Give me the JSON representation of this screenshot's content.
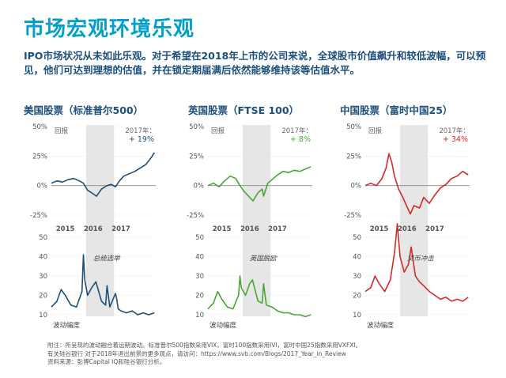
{
  "title": "市场宏观环境乐观",
  "intro": "IPO市场状况从未如此乐观。对于希望在2018年上市的公司来说，全球股市价值飙升和较低波幅，可以预见，他们可达到理想的估值，并在锁定期届满后依然能够维持该等估值水平。",
  "footnote": {
    "line1": "附注：所呈现的波动融合着远期波动。标准普尔500指数采用VIX，富时100指数采用IVI，富时中国25指数采用VXFXI。",
    "line2": "有关硅谷银行 对于2018年退出前景的更多观点，请访问：https://www.svb.com/Blogs/2017_Year_in_Review",
    "line3": "资料来源：彭博Capital IQ和硅谷银行分析。"
  },
  "colors": {
    "title": "#00a0c8",
    "panel_title": "#1c4f7c",
    "highlight": "#e6e6e6",
    "axis": "#555555"
  },
  "chart_data": [
    {
      "type": "line",
      "title": "美国股票（标准普尔500）",
      "color": "#1e4f78",
      "top": {
        "label": "回报",
        "ytick_labels": [
          "50%",
          "25%",
          "0%",
          "-25%"
        ],
        "ylim": [
          -25,
          50
        ],
        "xtick_labels": [
          "2015",
          "2016",
          "2017"
        ],
        "annotation_label": "2017年：",
        "annotation_value": "+ 19%",
        "series": [
          {
            "x": [
              2014.5,
              2014.7,
              2014.9,
              2015.1,
              2015.3,
              2015.5,
              2015.65,
              2015.8,
              2016.0,
              2016.12,
              2016.3,
              2016.5,
              2016.65,
              2016.8,
              2016.95,
              2017.1,
              2017.3,
              2017.5,
              2017.7,
              2017.9,
              2018.1,
              2018.2
            ],
            "y": [
              2,
              4,
              3,
              5,
              6,
              4,
              2,
              -4,
              -7,
              -9,
              -3,
              0,
              1,
              -1,
              4,
              8,
              10,
              12,
              15,
              18,
              24,
              28
            ]
          }
        ]
      },
      "bottom": {
        "label": "波动幅度",
        "ytick_labels": [
          "50",
          "40",
          "30",
          "20",
          "10"
        ],
        "ylim": [
          10,
          50
        ],
        "annotation": "总统选举",
        "series": [
          {
            "x": [
              2014.5,
              2014.7,
              2014.85,
              2015.0,
              2015.2,
              2015.4,
              2015.6,
              2015.65,
              2015.7,
              2015.8,
              2015.95,
              2016.1,
              2016.3,
              2016.45,
              2016.5,
              2016.6,
              2016.8,
              2016.85,
              2016.9,
              2017.0,
              2017.2,
              2017.4,
              2017.6,
              2017.8,
              2018.0,
              2018.2
            ],
            "y": [
              14,
              17,
              23,
              20,
              15,
              14,
              22,
              41,
              28,
              20,
              24,
              27,
              17,
              15,
              25,
              14,
              21,
              18,
              13,
              12,
              11,
              12,
              10,
              11,
              10,
              11
            ]
          }
        ]
      }
    },
    {
      "type": "line",
      "title": "英国股票（FTSE 100）",
      "color": "#4aa537",
      "top": {
        "label": "回报",
        "ytick_labels": [
          "50%",
          "25%",
          "0%",
          "-25%"
        ],
        "ylim": [
          -25,
          50
        ],
        "xtick_labels": [
          "2015",
          "2016",
          "2017"
        ],
        "annotation_label": "2017年：",
        "annotation_value": "+ 8%",
        "series": [
          {
            "x": [
              2014.5,
              2014.7,
              2014.9,
              2015.1,
              2015.3,
              2015.5,
              2015.65,
              2015.8,
              2016.0,
              2016.12,
              2016.3,
              2016.45,
              2016.5,
              2016.65,
              2016.8,
              2017.0,
              2017.2,
              2017.4,
              2017.6,
              2017.8,
              2018.0,
              2018.2
            ],
            "y": [
              0,
              2,
              -1,
              4,
              8,
              6,
              0,
              -5,
              -10,
              -13,
              -6,
              -3,
              -9,
              2,
              5,
              9,
              12,
              11,
              13,
              12,
              14,
              16
            ]
          }
        ]
      },
      "bottom": {
        "label": "波动幅度",
        "ytick_labels": [
          "50",
          "40",
          "30",
          "20",
          "10"
        ],
        "ylim": [
          10,
          50
        ],
        "annotation": "英国脱欧",
        "series": [
          {
            "x": [
              2014.5,
              2014.7,
              2014.85,
              2015.0,
              2015.2,
              2015.4,
              2015.6,
              2015.65,
              2015.7,
              2015.85,
              2016.0,
              2016.1,
              2016.3,
              2016.45,
              2016.5,
              2016.6,
              2016.8,
              2017.0,
              2017.2,
              2017.4,
              2017.6,
              2017.8,
              2018.0,
              2018.2
            ],
            "y": [
              13,
              16,
              22,
              18,
              14,
              13,
              20,
              30,
              24,
              20,
              26,
              28,
              17,
              16,
              26,
              15,
              14,
              12,
              11,
              11,
              10,
              10,
              9,
              10
            ]
          }
        ]
      }
    },
    {
      "type": "line",
      "title": "中国股票（富时中国25）",
      "color": "#d22a2a",
      "top": {
        "label": "回报",
        "ytick_labels": [
          "50%",
          "25%",
          "0%",
          "-25%"
        ],
        "ylim": [
          -25,
          50
        ],
        "xtick_labels": [
          "2015",
          "2016",
          "2017"
        ],
        "annotation_label": "2017年：",
        "annotation_value": "+ 34%",
        "series": [
          {
            "x": [
              2014.5,
              2014.7,
              2014.9,
              2015.1,
              2015.25,
              2015.35,
              2015.45,
              2015.55,
              2015.7,
              2015.85,
              2016.0,
              2016.12,
              2016.25,
              2016.45,
              2016.6,
              2016.8,
              2017.0,
              2017.2,
              2017.4,
              2017.6,
              2017.8,
              2018.0,
              2018.2
            ],
            "y": [
              0,
              2,
              0,
              6,
              15,
              27,
              20,
              8,
              -3,
              -10,
              -18,
              -24,
              -17,
              -19,
              -10,
              -15,
              -8,
              -2,
              1,
              6,
              8,
              12,
              9
            ]
          }
        ]
      },
      "bottom": {
        "label": "波动幅度",
        "ytick_labels": [
          "50",
          "40",
          "30",
          "20",
          "10"
        ],
        "ylim": [
          10,
          50
        ],
        "annotation": "货币冲击",
        "series": [
          {
            "x": [
              2014.5,
              2014.7,
              2014.85,
              2015.0,
              2015.2,
              2015.4,
              2015.55,
              2015.65,
              2015.75,
              2015.9,
              2016.05,
              2016.15,
              2016.3,
              2016.45,
              2016.6,
              2016.8,
              2017.0,
              2017.2,
              2017.4,
              2017.6,
              2017.8,
              2018.0,
              2018.2
            ],
            "y": [
              22,
              24,
              30,
              26,
              22,
              28,
              42,
              57,
              40,
              32,
              36,
              45,
              30,
              27,
              25,
              22,
              20,
              18,
              19,
              17,
              18,
              17,
              19
            ]
          }
        ]
      }
    }
  ]
}
